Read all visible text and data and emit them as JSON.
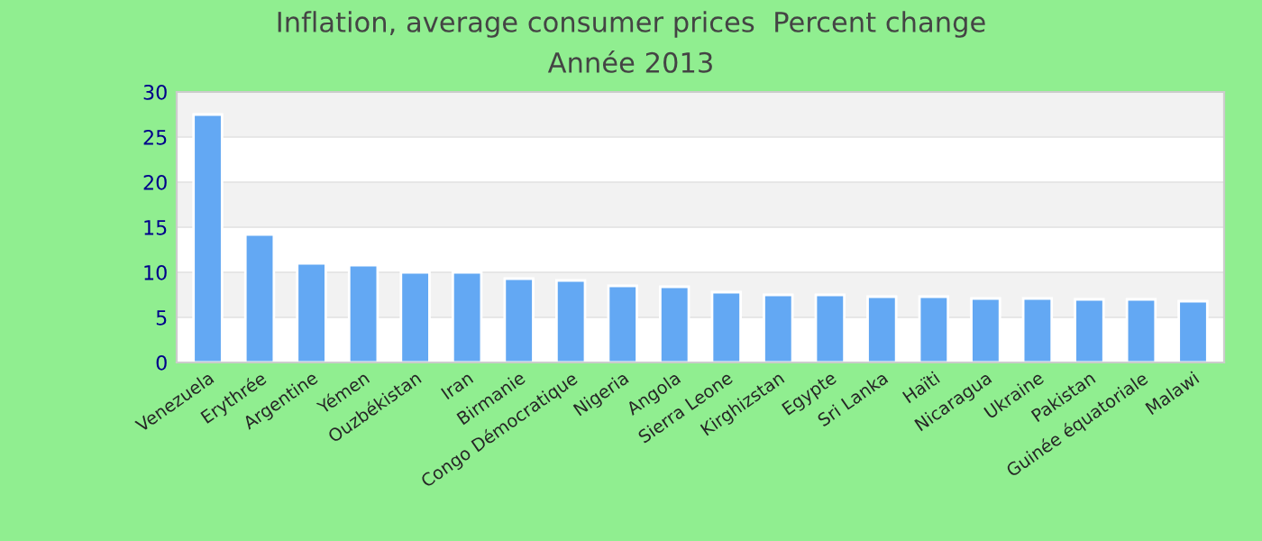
{
  "chart_data": {
    "type": "bar",
    "title": "Inflation, average consumer prices  Percent change",
    "subtitle": "Année 2013",
    "categories": [
      "Venezuela",
      "Erythrée",
      "Argentine",
      "Yémen",
      "Ouzbékistan",
      "Iran",
      "Birmanie",
      "Congo Démocratique",
      "Nigeria",
      "Angola",
      "Sierra Leone",
      "Kirghizstan",
      "Egypte",
      "Sri Lanka",
      "Haïti",
      "Nicaragua",
      "Ukraine",
      "Pakistan",
      "Guinée équatoriale",
      "Malawi"
    ],
    "values": [
      27.5,
      14.2,
      11.0,
      10.8,
      10.0,
      10.0,
      9.3,
      9.1,
      8.5,
      8.4,
      7.8,
      7.5,
      7.5,
      7.3,
      7.3,
      7.1,
      7.1,
      7.0,
      7.0,
      6.8
    ],
    "color": "#63a8f3",
    "ylim": [
      0,
      30
    ],
    "yticks": [
      0,
      5,
      10,
      15,
      20,
      25,
      30
    ],
    "grid": "y",
    "legend": false
  }
}
